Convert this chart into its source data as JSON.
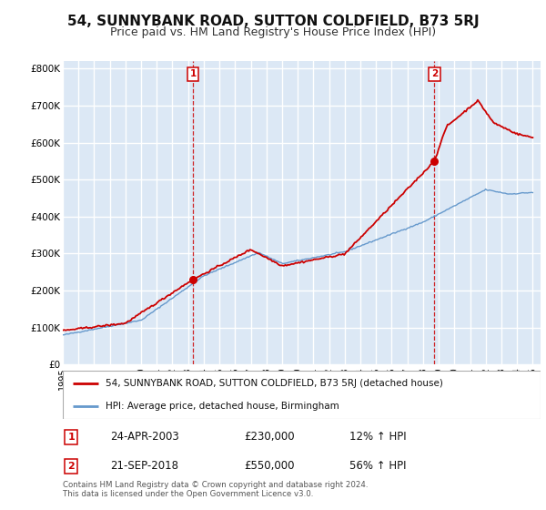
{
  "title": "54, SUNNYBANK ROAD, SUTTON COLDFIELD, B73 5RJ",
  "subtitle": "Price paid vs. HM Land Registry's House Price Index (HPI)",
  "ylabel_ticks": [
    "£0",
    "£100K",
    "£200K",
    "£300K",
    "£400K",
    "£500K",
    "£600K",
    "£700K",
    "£800K"
  ],
  "ytick_values": [
    0,
    100000,
    200000,
    300000,
    400000,
    500000,
    600000,
    700000,
    800000
  ],
  "ylim": [
    0,
    820000
  ],
  "xlim_start": 1995.0,
  "xlim_end": 2025.5,
  "red_line_label": "54, SUNNYBANK ROAD, SUTTON COLDFIELD, B73 5RJ (detached house)",
  "blue_line_label": "HPI: Average price, detached house, Birmingham",
  "transaction1_date": 2003.31,
  "transaction1_price": 230000,
  "transaction2_date": 2018.72,
  "transaction2_price": 550000,
  "legend_entry1_date": "24-APR-2003",
  "legend_entry1_price": "£230,000",
  "legend_entry1_pct": "12% ↑ HPI",
  "legend_entry2_date": "21-SEP-2018",
  "legend_entry2_price": "£550,000",
  "legend_entry2_pct": "56% ↑ HPI",
  "footnote": "Contains HM Land Registry data © Crown copyright and database right 2024.\nThis data is licensed under the Open Government Licence v3.0.",
  "red_color": "#cc0000",
  "blue_color": "#6699cc",
  "plot_bg_color": "#dce8f5",
  "grid_color": "#ffffff",
  "title_fontsize": 11,
  "subtitle_fontsize": 9
}
